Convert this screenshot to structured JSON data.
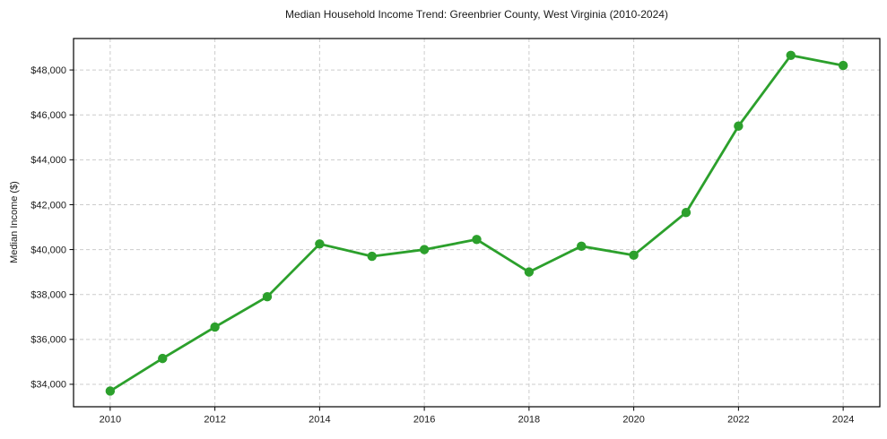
{
  "chart_data": {
    "type": "line",
    "title": "Median Household Income Trend: Greenbrier County, West Virginia (2010-2024)",
    "xlabel": "",
    "ylabel": "Median Income ($)",
    "x": [
      2010,
      2011,
      2012,
      2013,
      2014,
      2015,
      2016,
      2017,
      2018,
      2019,
      2020,
      2021,
      2022,
      2023,
      2024
    ],
    "values": [
      33700,
      35150,
      36550,
      37900,
      40250,
      39700,
      40000,
      40450,
      39000,
      40150,
      39750,
      41650,
      45500,
      48650,
      48200
    ],
    "series_name": "Median Household Income",
    "xlim": [
      2009.3,
      2024.7
    ],
    "ylim": [
      33000,
      49400
    ],
    "xticks": [
      2010,
      2012,
      2014,
      2016,
      2018,
      2020,
      2022,
      2024
    ],
    "xtick_labels": [
      "2010",
      "2012",
      "2014",
      "2016",
      "2018",
      "2020",
      "2022",
      "2024"
    ],
    "yticks": [
      34000,
      36000,
      38000,
      40000,
      42000,
      44000,
      46000,
      48000
    ],
    "ytick_labels": [
      "$34,000",
      "$36,000",
      "$38,000",
      "$40,000",
      "$42,000",
      "$44,000",
      "$46,000",
      "$48,000"
    ],
    "grid": true,
    "legend": false,
    "colors": {
      "line": "#2ca02c",
      "marker": "#2ca02c",
      "grid": "#cccccc",
      "frame": "#000000",
      "text": "#1a1a1a"
    }
  }
}
